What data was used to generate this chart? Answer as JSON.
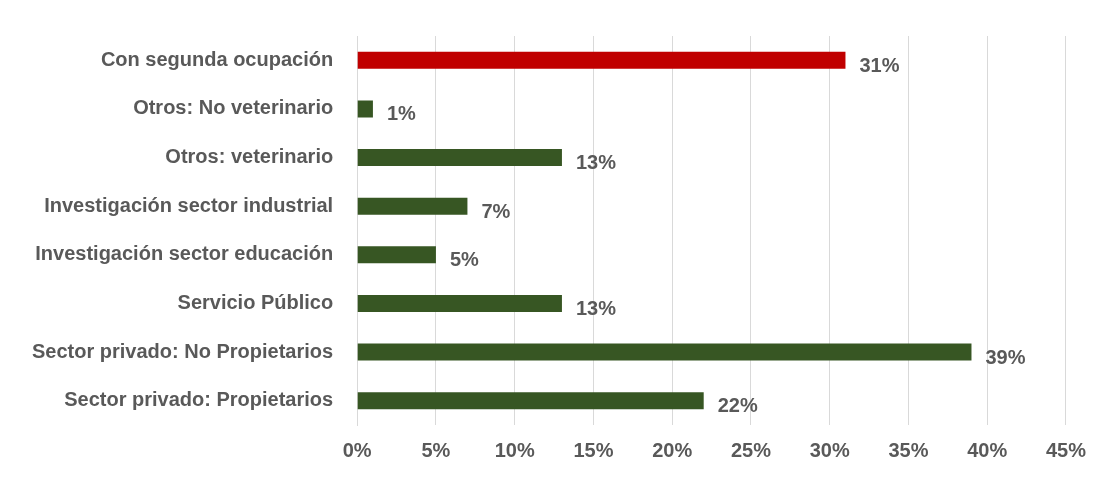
{
  "chart_data": {
    "type": "bar",
    "orientation": "horizontal",
    "categories": [
      "Con segunda ocupación",
      "Otros: No veterinario",
      "Otros: veterinario",
      "Investigación sector industrial",
      "Investigación sector educación",
      "Servicio Público",
      "Sector privado: No Propietarios",
      "Sector privado: Propietarios"
    ],
    "values": [
      31,
      1,
      13,
      7,
      5,
      13,
      39,
      22
    ],
    "colors": [
      "#c00000",
      "#375623",
      "#375623",
      "#375623",
      "#375623",
      "#375623",
      "#375623",
      "#375623"
    ],
    "value_labels": [
      "31%",
      "1%",
      "13%",
      "7%",
      "5%",
      "13%",
      "39%",
      "22%"
    ],
    "xlim": [
      0,
      45
    ],
    "xticks": [
      {
        "value": 0,
        "label": "0%"
      },
      {
        "value": 5,
        "label": "5%"
      },
      {
        "value": 10,
        "label": "10%"
      },
      {
        "value": 15,
        "label": "15%"
      },
      {
        "value": 20,
        "label": "20%"
      },
      {
        "value": 25,
        "label": "25%"
      },
      {
        "value": 30,
        "label": "30%"
      },
      {
        "value": 35,
        "label": "35%"
      },
      {
        "value": 40,
        "label": "40%"
      },
      {
        "value": 45,
        "label": "45%"
      }
    ],
    "grid": "x",
    "legend": false
  }
}
